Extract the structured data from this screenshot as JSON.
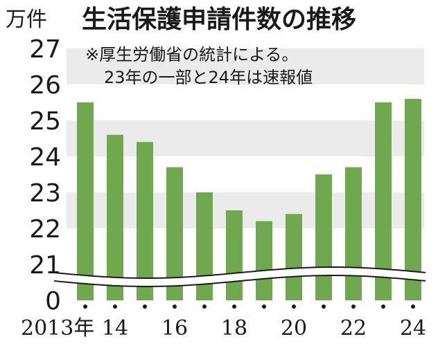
{
  "chart_data": {
    "type": "bar",
    "title": "生活保護申請件数の推移",
    "unit_label": "万件",
    "notes": [
      "※厚生労働省の統計による。",
      "23年の一部と24年は速報値"
    ],
    "y_ticks": [
      "27",
      "26",
      "25",
      "24",
      "23",
      "22",
      "21",
      "0"
    ],
    "y_tick_values": [
      27,
      26,
      25,
      24,
      23,
      22,
      21,
      0
    ],
    "ylim": [
      0,
      27
    ],
    "axis_break": true,
    "axis_break_between": [
      0,
      21
    ],
    "grid": "alternating horizontal bands",
    "categories": [
      "2013",
      "2014",
      "2015",
      "2016",
      "2017",
      "2018",
      "2019",
      "2020",
      "2021",
      "2022",
      "2023",
      "2024"
    ],
    "x_tick_labels": [
      {
        "category": "2013",
        "text": "2013年"
      },
      {
        "category": "2014",
        "text": "14"
      },
      {
        "category": "2016",
        "text": "16"
      },
      {
        "category": "2018",
        "text": "18"
      },
      {
        "category": "2020",
        "text": "20"
      },
      {
        "category": "2022",
        "text": "22"
      },
      {
        "category": "2024",
        "text": "24"
      }
    ],
    "series": [
      {
        "values": [
          25.5,
          24.6,
          24.4,
          23.7,
          23.0,
          22.5,
          22.2,
          22.4,
          23.5,
          23.7,
          25.5,
          25.6
        ]
      }
    ],
    "colors": {
      "bar": "#6fa84e",
      "band": "#ebebeb",
      "text": "#1a1a1a"
    }
  }
}
